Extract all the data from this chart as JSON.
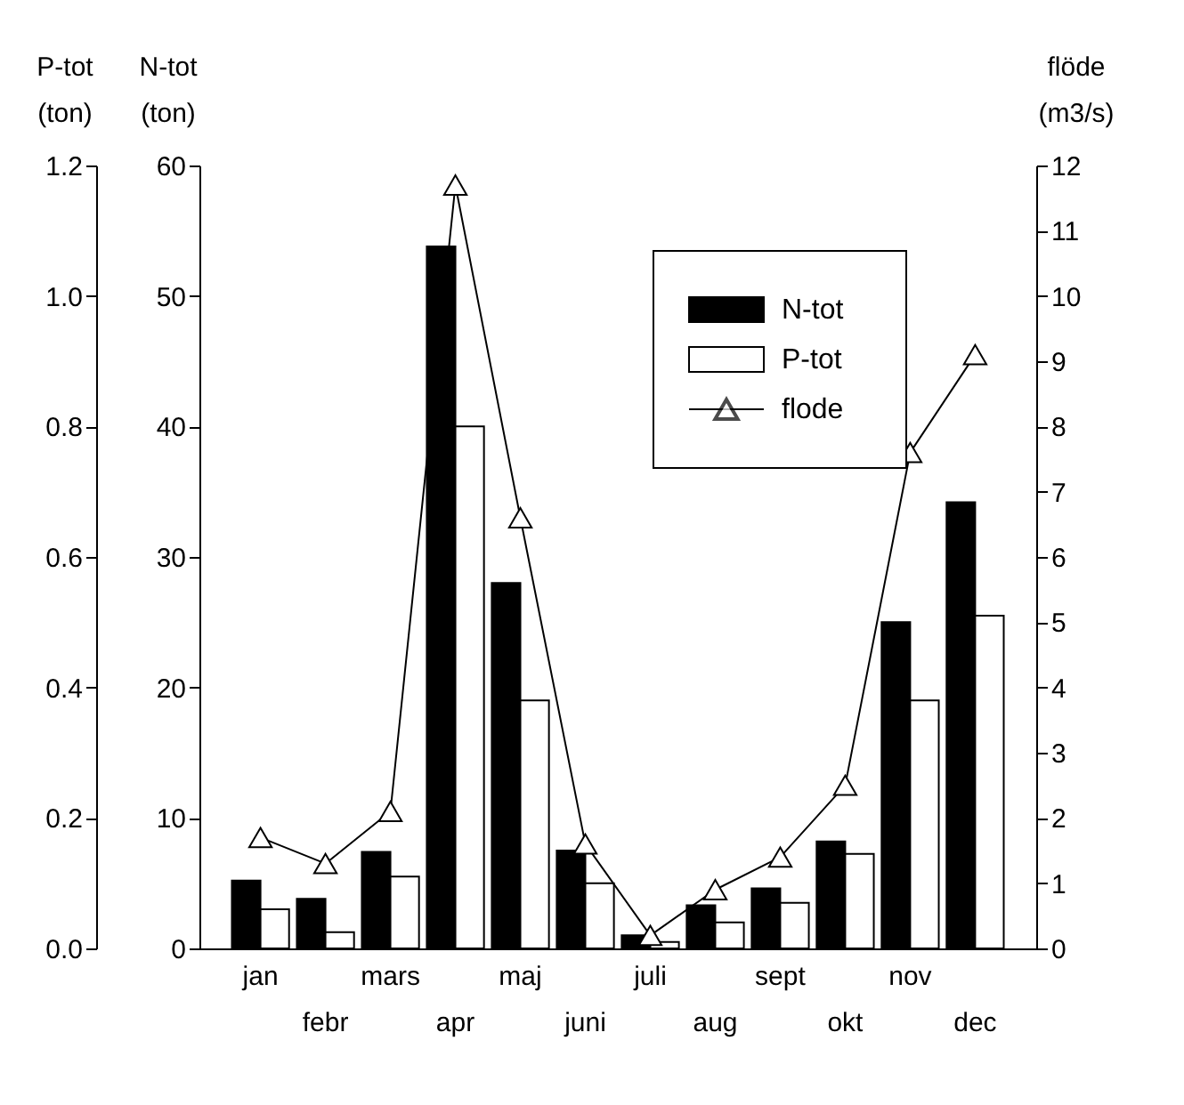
{
  "chart_data": {
    "type": "bar",
    "categories": [
      "jan",
      "febr",
      "mars",
      "apr",
      "maj",
      "juni",
      "juli",
      "aug",
      "sept",
      "okt",
      "nov",
      "dec"
    ],
    "ylabel": "N-tot (ton)",
    "y3label": "P-tot (ton)",
    "y2label": "flöde (m3/s)",
    "series": [
      {
        "name": "N-tot",
        "color": "#000000",
        "values": [
          5.2,
          3.8,
          7.4,
          53.8,
          28,
          7.5,
          1.0,
          3.3,
          4.6,
          8.2,
          25,
          34.2
        ]
      },
      {
        "name": "P-tot",
        "color": "#ffffff",
        "axis": "y3",
        "values": [
          0.06,
          0.025,
          0.11,
          0.8,
          0.38,
          0.1,
          0.01,
          0.04,
          0.07,
          0.145,
          0.38,
          0.51
        ]
      },
      {
        "name": "flode",
        "type": "line",
        "color": "#000000",
        "axis": "y2",
        "marker": "triangle",
        "values": [
          1.7,
          1.3,
          2.1,
          11.7,
          6.6,
          1.6,
          0.2,
          0.9,
          1.4,
          2.5,
          7.6,
          9.1
        ]
      }
    ],
    "ylim": [
      0,
      60
    ],
    "yticks": [
      0,
      10,
      20,
      30,
      40,
      50,
      60
    ],
    "y3lim": [
      0,
      1.2
    ],
    "y3ticks": [
      {
        "value": 0,
        "label": "0.0"
      },
      {
        "value": 0.2,
        "label": "0.2"
      },
      {
        "value": 0.4,
        "label": "0.4"
      },
      {
        "value": 0.6,
        "label": "0.6"
      },
      {
        "value": 0.8,
        "label": "0.8"
      },
      {
        "value": 1.0,
        "label": "1.0"
      },
      {
        "value": 1.2,
        "label": "1.2"
      }
    ],
    "y2lim": [
      0,
      12
    ],
    "y2ticks": [
      0,
      1,
      2,
      3,
      4,
      5,
      6,
      7,
      8,
      9,
      10,
      11,
      12
    ],
    "grid": false,
    "legend": "top right"
  }
}
